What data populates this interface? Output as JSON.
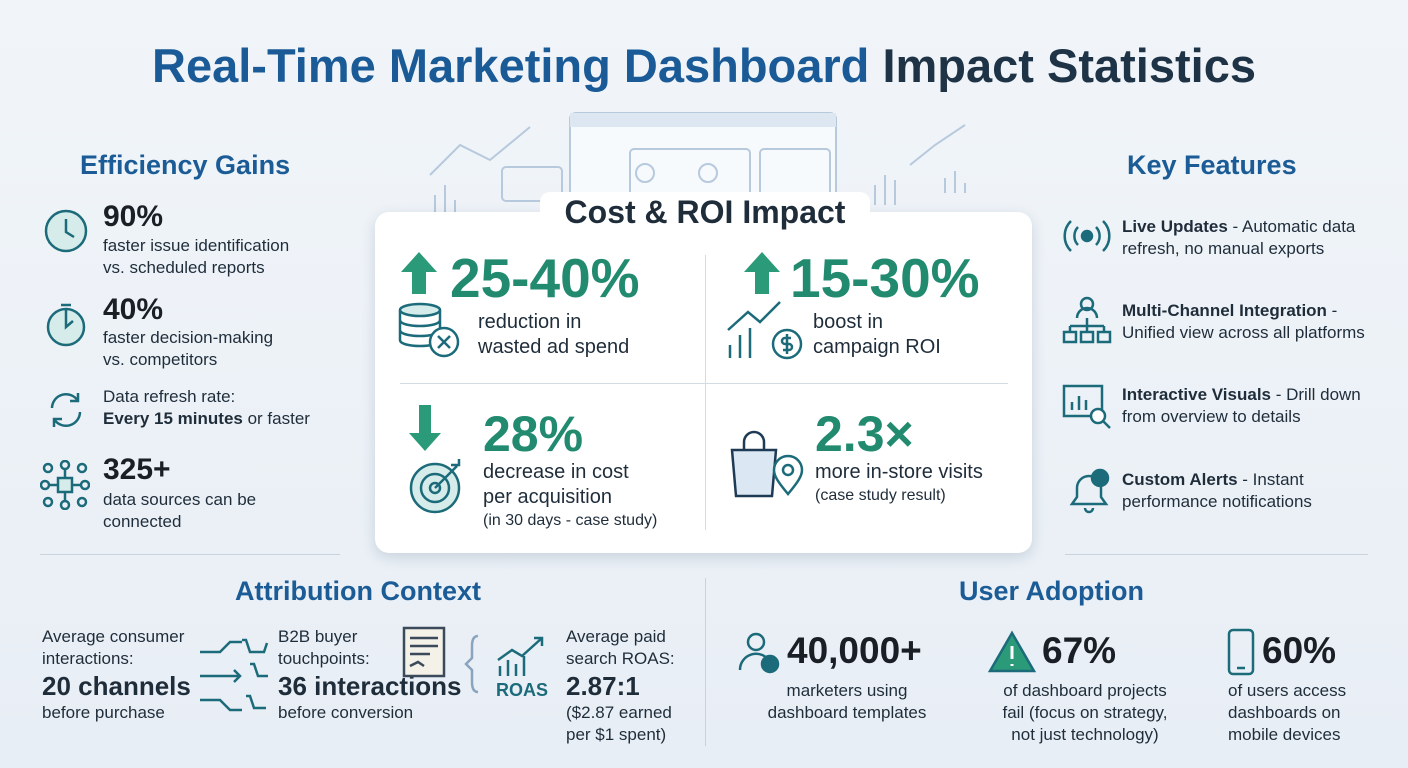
{
  "header": {
    "title_blue": "Real-Time Marketing Dashboard",
    "title_dark": "Impact Statistics"
  },
  "efficiency": {
    "heading": "Efficiency Gains",
    "items": [
      {
        "stat": "90%",
        "lines": [
          "faster issue identification",
          "vs. scheduled reports"
        ]
      },
      {
        "stat": "40%",
        "lines": [
          "faster decision-making",
          "vs. competitors"
        ]
      },
      {
        "label": "Data refresh rate:",
        "strong": "Every 15 minutes",
        "rest": "or faster"
      },
      {
        "stat": "325+",
        "lines": [
          "data sources can be",
          "connected"
        ]
      }
    ]
  },
  "cost_roi": {
    "heading": "Cost & ROI Impact",
    "items": [
      {
        "stat": "25-40%",
        "lines": [
          "reduction in",
          "wasted ad spend"
        ]
      },
      {
        "stat": "15-30%",
        "lines": [
          "boost in",
          "campaign ROI"
        ]
      },
      {
        "stat": "28%",
        "lines": [
          "decrease in cost",
          "per acquisition"
        ],
        "note": "(in 30 days - case study)"
      },
      {
        "stat": "2.3×",
        "lines": [
          "more in-store visits"
        ],
        "note": "(case study result)"
      }
    ]
  },
  "features": {
    "heading": "Key Features",
    "items": [
      {
        "name": "Live Updates",
        "desc": "- Automatic data refresh, no manual exports"
      },
      {
        "name": "Multi-Channel Integration",
        "desc": "- Unified view across all platforms"
      },
      {
        "name": "Interactive Visuals",
        "desc": "- Drill down from overview to details"
      },
      {
        "name": "Custom Alerts",
        "desc": "- Instant performance notifications"
      }
    ]
  },
  "attribution": {
    "heading": "Attribution Context",
    "roas_icon": "ROAS",
    "items": [
      {
        "lines": [
          "Average consumer",
          "interactions:"
        ],
        "stat": "20 channels",
        "note": [
          "before purchase"
        ]
      },
      {
        "lines": [
          "B2B buyer",
          "touchpoints:"
        ],
        "stat": "36 interactions",
        "note": [
          "before conversion"
        ]
      },
      {
        "lines": [
          "Average paid",
          "search ROAS:"
        ],
        "stat": "2.87:1",
        "note": [
          "($2.87 earned",
          "per $1 spent)"
        ]
      }
    ]
  },
  "adoption": {
    "heading": "User Adoption",
    "items": [
      {
        "stat": "40,000+",
        "lines": [
          "marketers using",
          "dashboard templates"
        ]
      },
      {
        "stat": "67%",
        "lines": [
          "of dashboard projects",
          "fail (focus on strategy,",
          "not just technology)"
        ]
      },
      {
        "stat": "60%",
        "lines": [
          "of users access",
          "dashboards on",
          "mobile devices"
        ]
      }
    ]
  }
}
